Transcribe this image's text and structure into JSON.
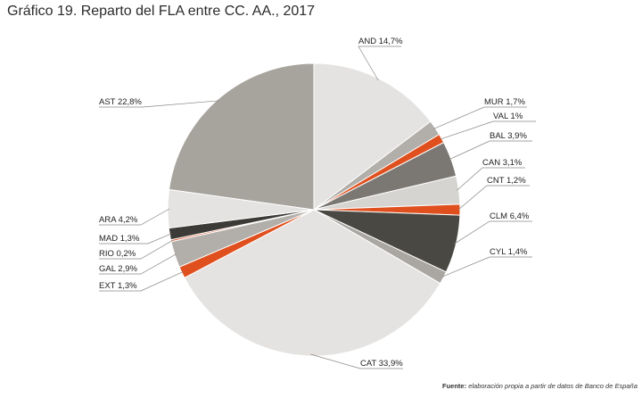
{
  "title": "Gráfico 19. Reparto del FLA entre CC. AA., 2017",
  "source": {
    "label": "Fuente:",
    "text": "elaboración propia a partir de datos de Banco de España"
  },
  "chart_data": {
    "type": "pie",
    "title": "Gráfico 19. Reparto del FLA entre CC. AA., 2017",
    "unit": "%",
    "start": "12 o'clock",
    "direction": "clockwise",
    "slices": [
      {
        "key": "and",
        "name": "AND",
        "value": 14.7,
        "label": "AND 14,7%",
        "color": "#e4e3e1"
      },
      {
        "key": "mur",
        "name": "MUR",
        "value": 1.7,
        "label": "MUR 1,7%",
        "color": "#b2afaa"
      },
      {
        "key": "val",
        "name": "VAL",
        "value": 1.0,
        "label": "VAL 1%",
        "color": "#e0501e"
      },
      {
        "key": "bal",
        "name": "BAL",
        "value": 3.9,
        "label": "BAL 3,9%",
        "color": "#7b7874"
      },
      {
        "key": "can",
        "name": "CAN",
        "value": 3.1,
        "label": "CAN  3,1%",
        "color": "#d6d4d1"
      },
      {
        "key": "cnt",
        "name": "CNT",
        "value": 1.2,
        "label": "CNT 1,2%",
        "color": "#e0501e"
      },
      {
        "key": "clm",
        "name": "CLM",
        "value": 6.4,
        "label": "CLM 6,4%",
        "color": "#4a4843"
      },
      {
        "key": "cyl",
        "name": "CYL",
        "value": 1.4,
        "label": "CYL 1,4%",
        "color": "#aaa7a2"
      },
      {
        "key": "cat",
        "name": "CAT",
        "value": 33.9,
        "label": "CAT 33,9%",
        "color": "#e4e3e1"
      },
      {
        "key": "ext",
        "name": "EXT",
        "value": 1.3,
        "label": "EXT 1,3%",
        "color": "#e0501e"
      },
      {
        "key": "gal",
        "name": "GAL",
        "value": 2.9,
        "label": "GAL 2,9%",
        "color": "#b2afaa"
      },
      {
        "key": "rio",
        "name": "RIO",
        "value": 0.2,
        "label": "RIO 0,2%",
        "color": "#e0501e"
      },
      {
        "key": "mad",
        "name": "MAD",
        "value": 1.3,
        "label": "MAD 1,3%",
        "color": "#3d3b37"
      },
      {
        "key": "ara",
        "name": "ARA",
        "value": 4.2,
        "label": "ARA 4,2%",
        "color": "#e4e3e1"
      },
      {
        "key": "ast",
        "name": "AST",
        "value": 22.8,
        "label": "AST 22,8%",
        "color": "#a7a39d"
      }
    ]
  }
}
